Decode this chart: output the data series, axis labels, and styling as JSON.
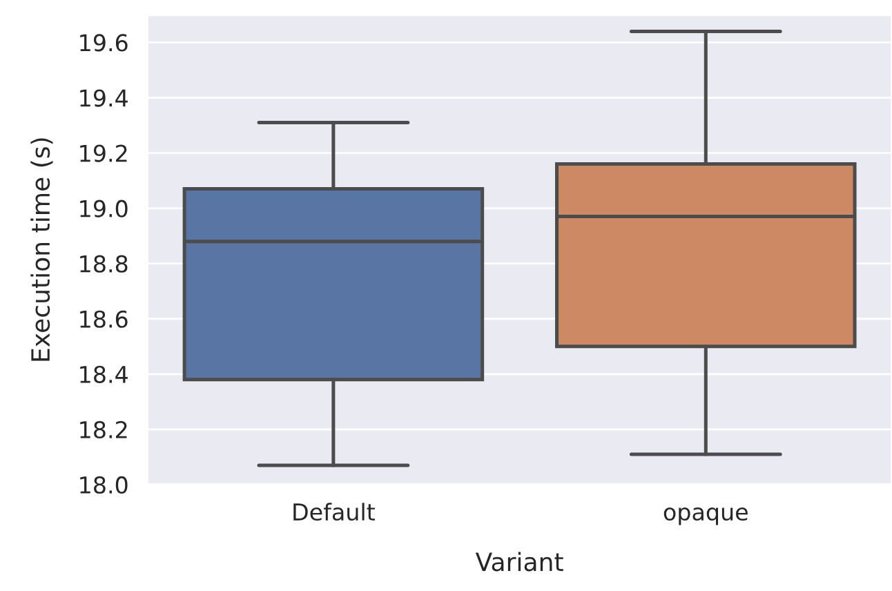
{
  "chart_data": {
    "type": "box",
    "xlabel": "Variant",
    "ylabel": "Execution time (s)",
    "categories": [
      "Default",
      "opaque"
    ],
    "colors": [
      "#5975a4",
      "#cc8963"
    ],
    "boxes": [
      {
        "low": 18.07,
        "q1": 18.38,
        "median": 18.88,
        "q3": 19.07,
        "high": 19.31
      },
      {
        "low": 18.11,
        "q1": 18.5,
        "median": 18.97,
        "q3": 19.16,
        "high": 19.64
      }
    ],
    "ylim": [
      18.0,
      19.7
    ],
    "yticks": [
      {
        "value": 18.0,
        "label": "18.0"
      },
      18.2,
      18.4,
      18.6,
      18.8,
      {
        "value": 19.0,
        "label": "19.0"
      },
      19.2,
      19.4,
      19.6
    ],
    "grid": "y"
  }
}
